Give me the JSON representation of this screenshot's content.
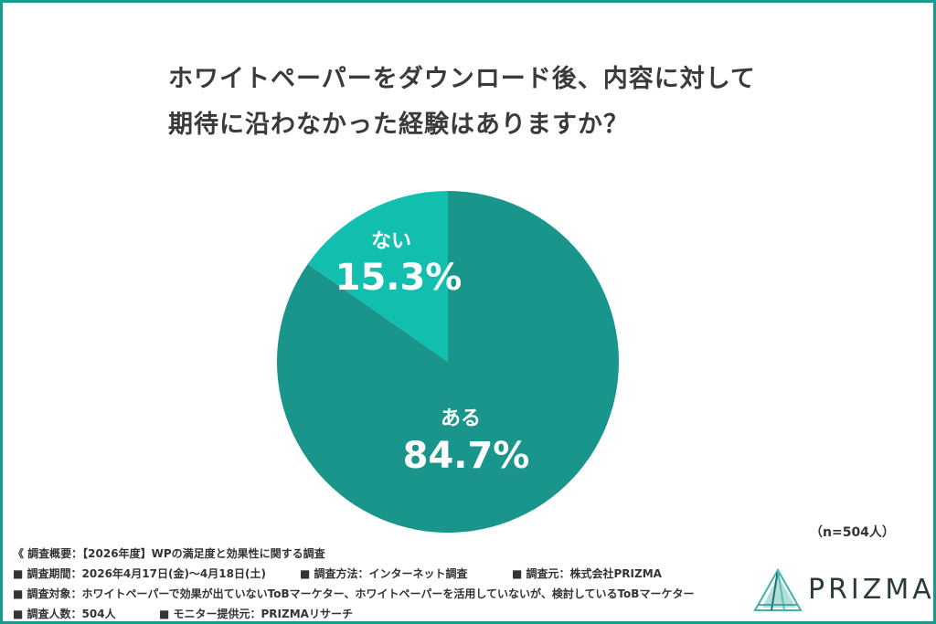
{
  "title": {
    "line1": "ホワイトペーパーをダウンロード後、内容に対して",
    "line2": "期待に沿わなかった経験はありますか？"
  },
  "chart_data": {
    "type": "pie",
    "slices": [
      {
        "label": "ある",
        "value": 84.7,
        "display": "84.7%",
        "color": "#1a958b"
      },
      {
        "label": "ない",
        "value": 15.3,
        "display": "15.3%",
        "color": "#12bfae"
      }
    ]
  },
  "sample_size": "（n=504人）",
  "notes": {
    "summary": "《 調査概要：【2026年度】WPの満足度と効果性に関する調査",
    "period": "■ 調査期間：2026年4月17日(金)～4月18日(土)",
    "method": "■ 調査方法：インターネット調査",
    "source": "■ 調査元：株式会社PRIZMA",
    "target": "■ 調査対象：ホワイトペーパーで効果が出ていないToBマーケター、ホワイトペーパーを活用していないが、検討しているToBマーケター",
    "count": "■ 調査人数：504人",
    "provider": "■ モニター提供元：PRIZMAリサーチ"
  },
  "logo": {
    "text": "PRIZMA"
  },
  "colors": {
    "frame": "#1a9a8e",
    "primary": "#1a958b",
    "secondary": "#12bfae"
  }
}
